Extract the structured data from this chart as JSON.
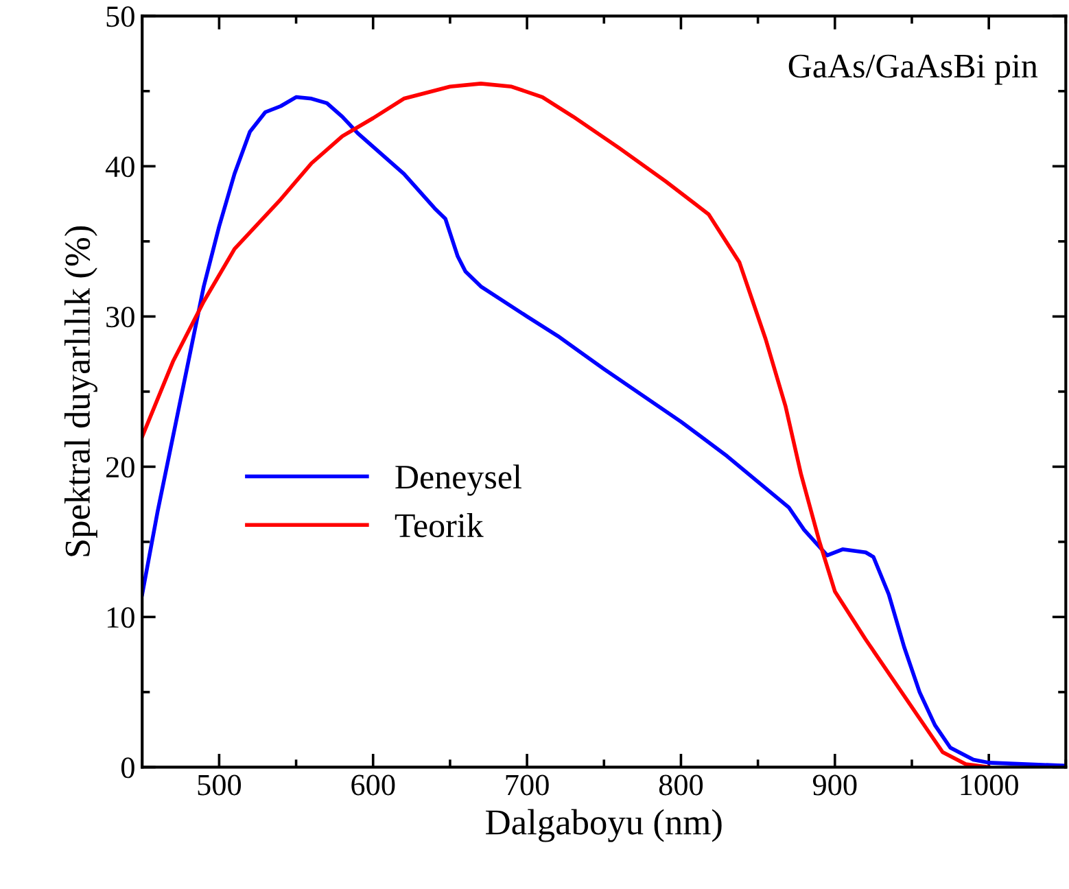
{
  "chart_data": {
    "type": "line",
    "xlabel": "Dalgaboyu (nm)",
    "ylabel": "Spektral duyarlılık (%)",
    "annotations": [
      "GaAs/GaAsBi pin"
    ],
    "xlim": [
      450,
      1050
    ],
    "ylim": [
      0,
      50
    ],
    "xticks": [
      500,
      600,
      700,
      800,
      900,
      1000
    ],
    "yticks": [
      0,
      10,
      20,
      30,
      40,
      50
    ],
    "legend": "center left",
    "grid": false,
    "line_style": "solid",
    "marker": "none",
    "series": [
      {
        "name": "Deneysel",
        "color": "#0000ff",
        "x": [
          450,
          460,
          470,
          480,
          490,
          500,
          510,
          520,
          530,
          540,
          550,
          560,
          570,
          580,
          590,
          600,
          620,
          640,
          647,
          655,
          660,
          670,
          700,
          720,
          750,
          800,
          830,
          850,
          870,
          880,
          895,
          905,
          920,
          925,
          935,
          945,
          955,
          965,
          975,
          990,
          1000,
          1050
        ],
        "values": [
          11.5,
          17,
          22,
          27,
          32,
          36,
          39.5,
          42.3,
          43.6,
          44,
          44.6,
          44.5,
          44.2,
          43.3,
          42.2,
          41.3,
          39.5,
          37.2,
          36.5,
          34,
          33,
          32,
          30,
          28.7,
          26.5,
          23,
          20.7,
          19,
          17.3,
          15.8,
          14.1,
          14.5,
          14.3,
          14,
          11.5,
          8,
          5,
          2.8,
          1.3,
          0.5,
          0.3,
          0.1
        ]
      },
      {
        "name": "Teorik",
        "color": "#ff0000",
        "x": [
          450,
          470,
          490,
          510,
          540,
          560,
          580,
          600,
          620,
          650,
          670,
          690,
          710,
          730,
          760,
          790,
          818,
          838,
          855,
          868,
          878,
          890,
          900,
          920,
          940,
          960,
          970,
          985,
          1000
        ],
        "values": [
          22,
          27,
          31,
          34.5,
          37.8,
          40.2,
          42,
          43.2,
          44.5,
          45.3,
          45.5,
          45.3,
          44.6,
          43.3,
          41.2,
          39,
          36.8,
          33.6,
          28.5,
          24,
          19.5,
          15,
          11.7,
          8.5,
          5.5,
          2.5,
          1,
          0.2,
          0
        ]
      }
    ]
  }
}
